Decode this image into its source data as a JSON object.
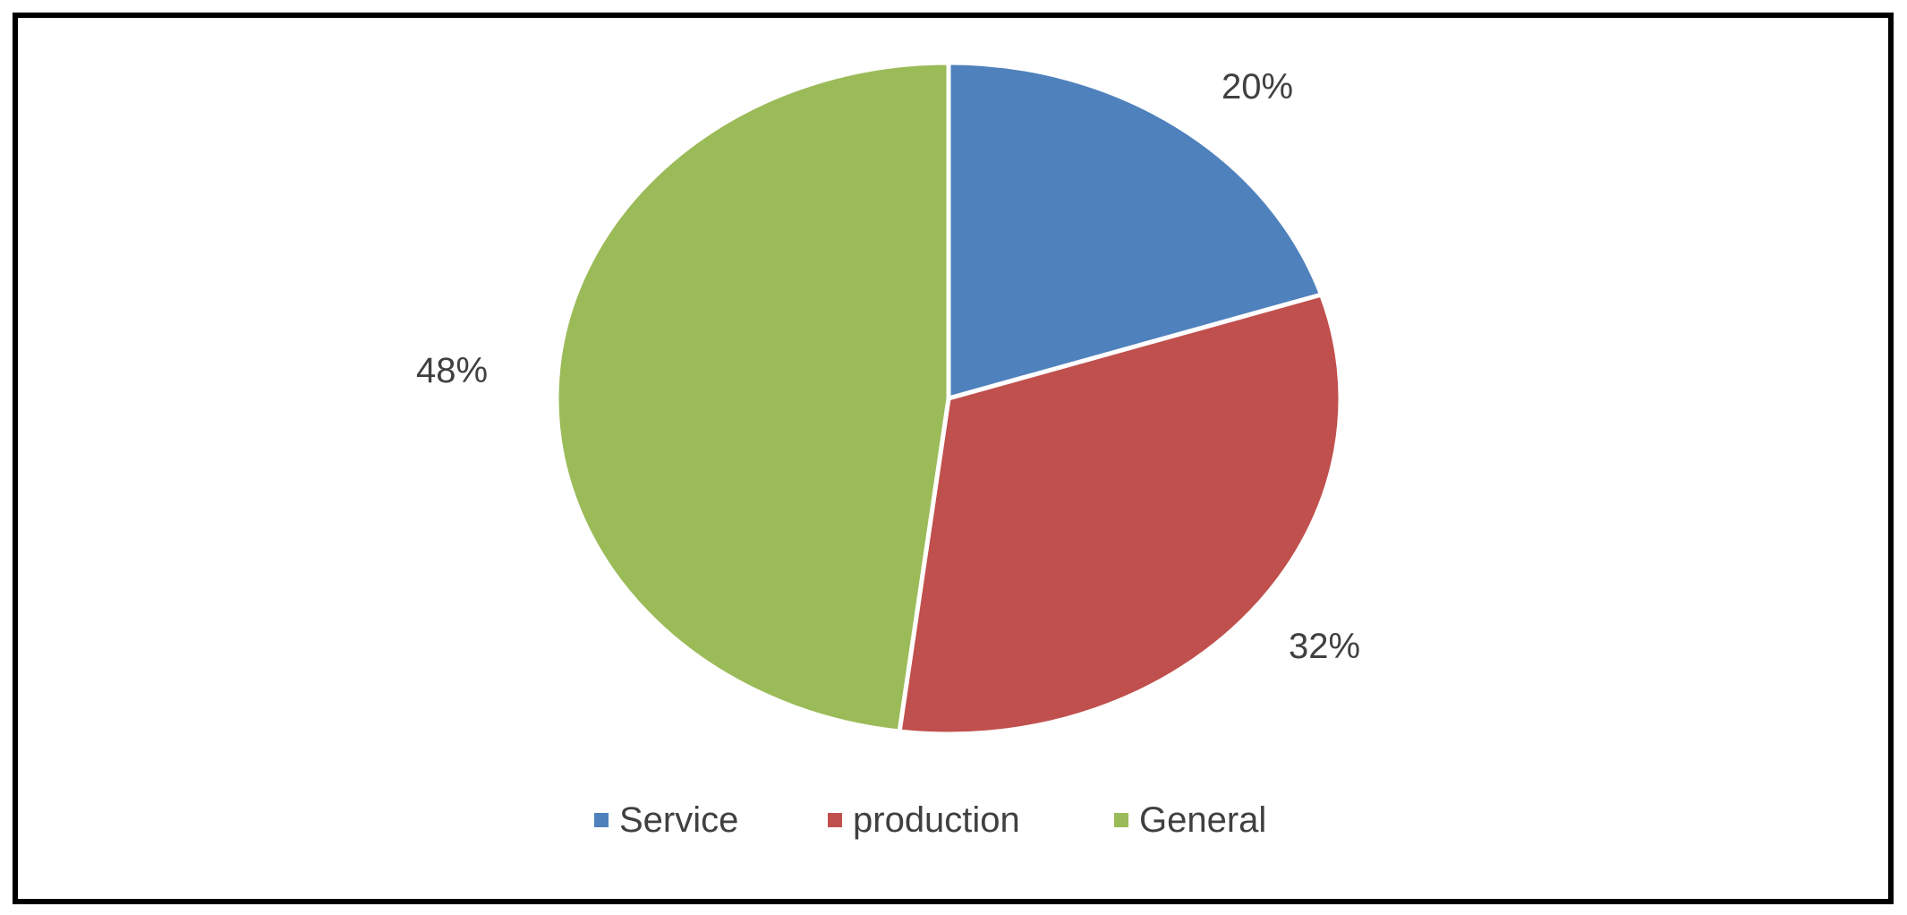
{
  "chart_data": {
    "type": "pie",
    "title": "",
    "categories": [
      "Service",
      "production",
      "General"
    ],
    "values": [
      20,
      32,
      48
    ],
    "data_labels": [
      "20%",
      "32%",
      "48%"
    ],
    "colors": [
      "#4F81BD",
      "#C0504D",
      "#9BBB59"
    ],
    "legend": {
      "position": "bottom",
      "entries": [
        "Service",
        "production",
        "General"
      ]
    },
    "start_angle": "12 o'clock",
    "direction": "clockwise"
  }
}
